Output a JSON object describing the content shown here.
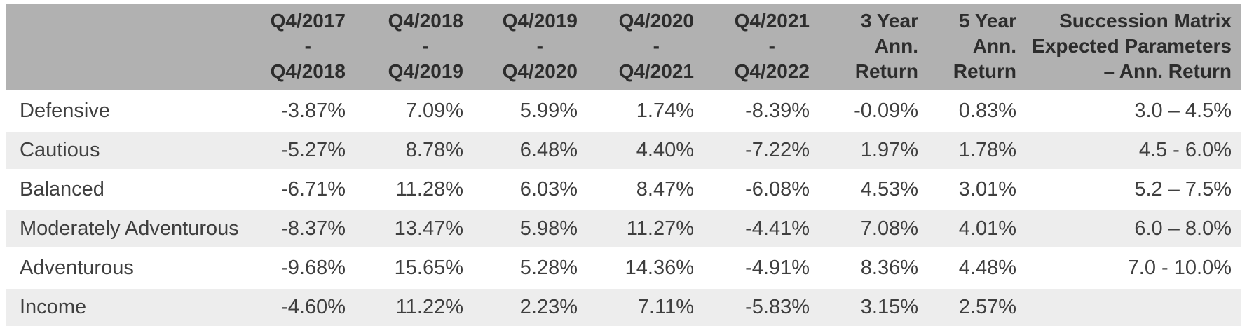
{
  "table": {
    "header": {
      "label_column": "",
      "period_columns": [
        {
          "from": "Q4/2017",
          "sep": "-",
          "to": "Q4/2018"
        },
        {
          "from": "Q4/2018",
          "sep": "-",
          "to": "Q4/2019"
        },
        {
          "from": "Q4/2019",
          "sep": "-",
          "to": "Q4/2020"
        },
        {
          "from": "Q4/2020",
          "sep": "-",
          "to": "Q4/2021"
        },
        {
          "from": "Q4/2021",
          "sep": "-",
          "to": "Q4/2022"
        }
      ],
      "summary_columns": [
        {
          "name": "3-year-ann-return",
          "lines": [
            "3 Year",
            "Ann.",
            "Return"
          ]
        },
        {
          "name": "5-year-ann-return",
          "lines": [
            "5 Year",
            "Ann.",
            "Return"
          ]
        },
        {
          "name": "succession-matrix-expected-parameters",
          "lines": [
            "Succession Matrix",
            "Expected Parameters",
            "– Ann. Return"
          ]
        }
      ]
    },
    "rows": [
      {
        "label": "Defensive",
        "values": [
          "-3.87%",
          "7.09%",
          "5.99%",
          "1.74%",
          "-8.39%",
          "-0.09%",
          "0.83%",
          "3.0 – 4.5%"
        ]
      },
      {
        "label": "Cautious",
        "values": [
          "-5.27%",
          "8.78%",
          "6.48%",
          "4.40%",
          "-7.22%",
          "1.97%",
          "1.78%",
          "4.5 - 6.0%"
        ]
      },
      {
        "label": "Balanced",
        "values": [
          "-6.71%",
          "11.28%",
          "6.03%",
          "8.47%",
          "-6.08%",
          "4.53%",
          "3.01%",
          "5.2 – 7.5%"
        ]
      },
      {
        "label": "Moderately Adventurous",
        "values": [
          "-8.37%",
          "13.47%",
          "5.98%",
          "11.27%",
          "-4.41%",
          "7.08%",
          "4.01%",
          "6.0 – 8.0%"
        ]
      },
      {
        "label": "Adventurous",
        "values": [
          "-9.68%",
          "15.65%",
          "5.28%",
          "14.36%",
          "-4.91%",
          "8.36%",
          "4.48%",
          "7.0 - 10.0%"
        ]
      },
      {
        "label": "Income",
        "values": [
          "-4.60%",
          "11.22%",
          "2.23%",
          "7.11%",
          "-5.83%",
          "3.15%",
          "2.57%",
          ""
        ]
      }
    ],
    "colors": {
      "header_bg": "#b1b1b1",
      "header_text": "#2d2d2d",
      "row_text": "#3f3f3f",
      "row_alt_bg": "#ededed",
      "page_bg": "#ffffff"
    }
  }
}
